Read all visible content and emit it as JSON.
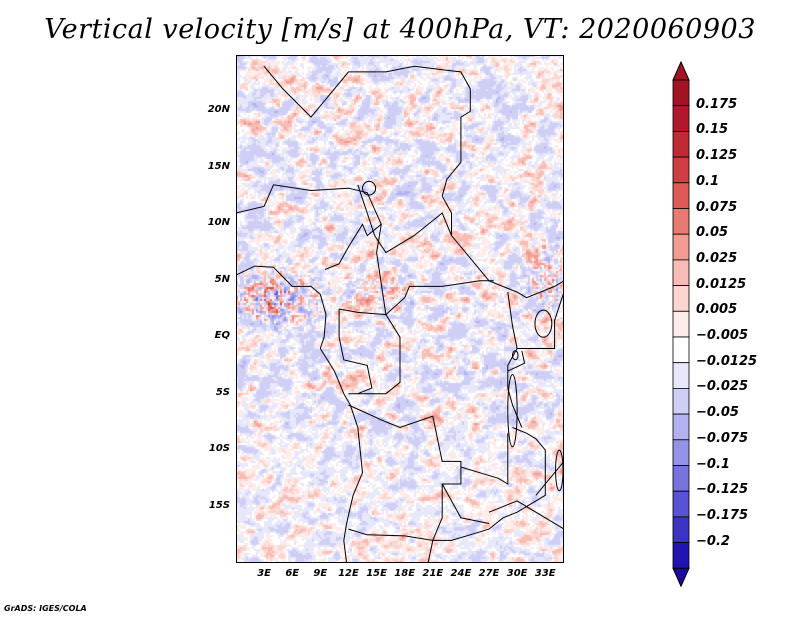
{
  "title": "Vertical velocity [m/s] at 400hPa, VT: 2020060903",
  "credit": "GrADS: IGES/COLA",
  "map": {
    "lat_range": [
      -20,
      25
    ],
    "lon_range": [
      0,
      35
    ],
    "lat_labels": [
      {
        "text": "20N",
        "lat": 20
      },
      {
        "text": "15N",
        "lat": 15
      },
      {
        "text": "10N",
        "lat": 10
      },
      {
        "text": "5N",
        "lat": 5
      },
      {
        "text": "EQ",
        "lat": 0
      },
      {
        "text": "5S",
        "lat": -5
      },
      {
        "text": "10S",
        "lat": -10
      },
      {
        "text": "15S",
        "lat": -15
      }
    ],
    "lon_labels": [
      {
        "text": "3E",
        "lon": 3
      },
      {
        "text": "6E",
        "lon": 6
      },
      {
        "text": "9E",
        "lon": 9
      },
      {
        "text": "12E",
        "lon": 12
      },
      {
        "text": "15E",
        "lon": 15
      },
      {
        "text": "18E",
        "lon": 18
      },
      {
        "text": "21E",
        "lon": 21
      },
      {
        "text": "24E",
        "lon": 24
      },
      {
        "text": "27E",
        "lon": 27
      },
      {
        "text": "30E",
        "lon": 30
      },
      {
        "text": "33E",
        "lon": 33
      }
    ]
  },
  "colorbar": {
    "units": "m/s",
    "levels": [
      {
        "label": "0.175",
        "color": "#b2182b"
      },
      {
        "label": "0.15",
        "color": "#c02a33"
      },
      {
        "label": "0.125",
        "color": "#cf3e40"
      },
      {
        "label": "0.1",
        "color": "#dd5a56"
      },
      {
        "label": "0.075",
        "color": "#e87a72"
      },
      {
        "label": "0.05",
        "color": "#f19b92"
      },
      {
        "label": "0.025",
        "color": "#f7bcb4"
      },
      {
        "label": "0.0125",
        "color": "#fbd6d0"
      },
      {
        "label": "0.005",
        "color": "#fdecea"
      },
      {
        "label": "−0.005",
        "color": "#ffffff"
      },
      {
        "label": "−0.0125",
        "color": "#e8e8fb"
      },
      {
        "label": "−0.025",
        "color": "#cfcff6"
      },
      {
        "label": "−0.05",
        "color": "#b3b2f0"
      },
      {
        "label": "−0.075",
        "color": "#9593e8"
      },
      {
        "label": "−0.1",
        "color": "#7774de"
      },
      {
        "label": "−0.125",
        "color": "#5853d2"
      },
      {
        "label": "−0.175",
        "color": "#3a33c4"
      },
      {
        "label": "−0.2",
        "color": "#2214b0"
      }
    ],
    "top_color": "#a01423",
    "bottom_color": "#1a0b9c",
    "top_triangle_color": "#a01423",
    "bottom_triangle_color": "#1a0b9c"
  }
}
